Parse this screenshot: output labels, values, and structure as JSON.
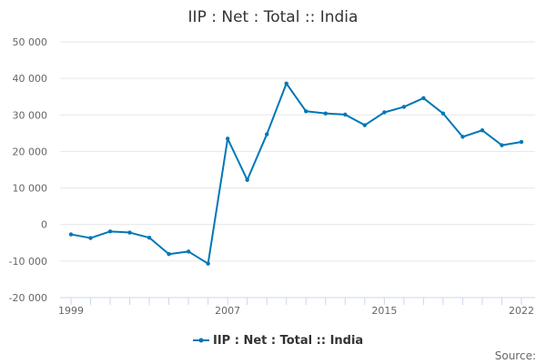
{
  "chart_data": {
    "type": "line",
    "title": "IIP : Net : Total :: India",
    "xlabel": "",
    "ylabel": "",
    "x": [
      1999,
      2000,
      2001,
      2002,
      2003,
      2004,
      2005,
      2006,
      2007,
      2008,
      2009,
      2010,
      2011,
      2012,
      2013,
      2014,
      2015,
      2016,
      2017,
      2018,
      2019,
      2020,
      2021,
      2022
    ],
    "series": [
      {
        "name": "IIP : Net : Total :: India",
        "color": "#0077b6",
        "values": [
          -2700,
          -3700,
          -1900,
          -2200,
          -3600,
          -8100,
          -7400,
          -10700,
          23500,
          12200,
          24700,
          38600,
          31000,
          30400,
          30100,
          27200,
          30700,
          32200,
          34600,
          30400,
          24000,
          25800,
          21700,
          22600
        ]
      }
    ],
    "ylim": [
      -20000,
      50000
    ],
    "yticks": [
      "-20 000",
      "-10 000",
      "0",
      "10 000",
      "20 000",
      "30 000",
      "40 000",
      "50 000"
    ],
    "yticks_values": [
      -20000,
      -10000,
      0,
      10000,
      20000,
      30000,
      40000,
      50000
    ],
    "xticks": [
      "1999",
      "2007",
      "2015",
      "2022"
    ],
    "xticks_values": [
      1999,
      2007,
      2015,
      2022
    ],
    "grid": true,
    "legend_position": "bottom-center",
    "credit": "Source:"
  }
}
